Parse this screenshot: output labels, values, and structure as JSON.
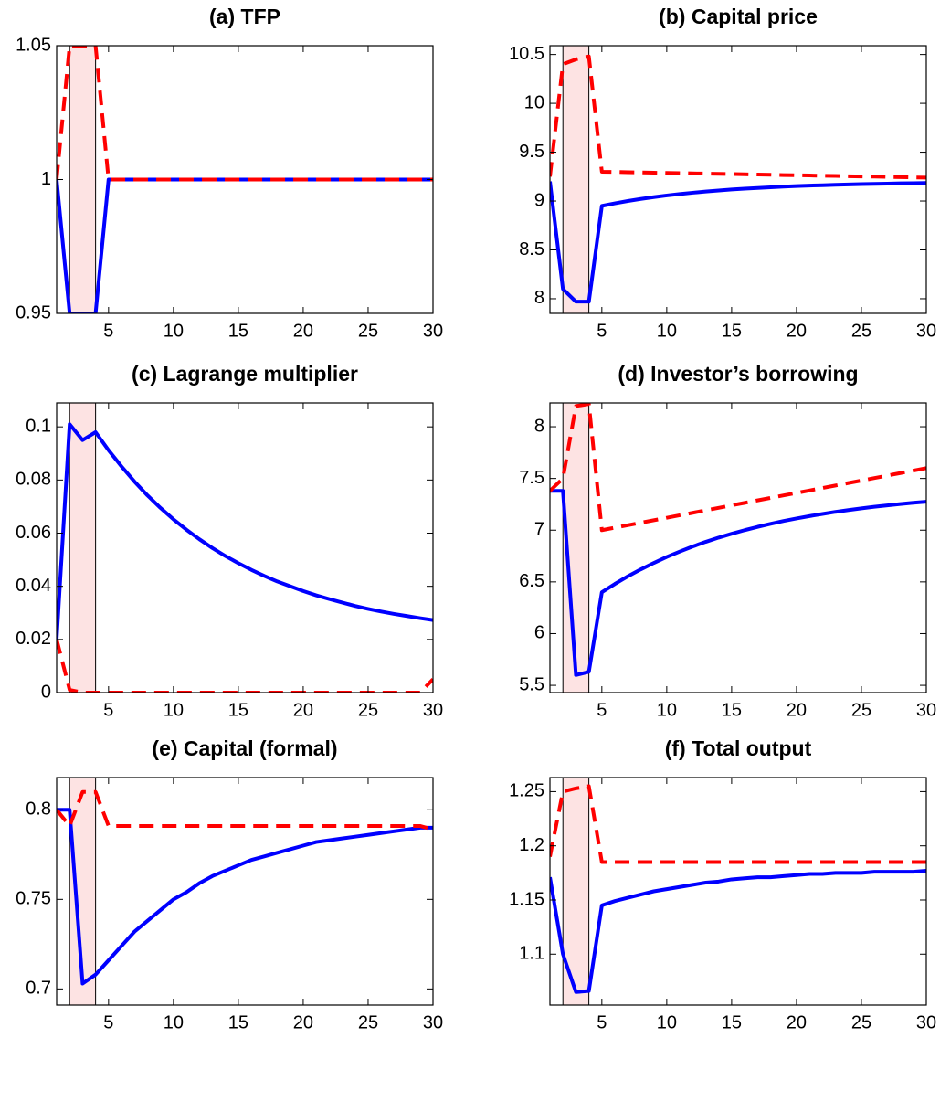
{
  "chart_data": [
    {
      "type": "line",
      "title": "(a) TFP",
      "x": [
        1,
        2,
        3,
        4,
        5,
        6,
        7,
        8,
        9,
        10,
        11,
        12,
        13,
        14,
        15,
        16,
        17,
        18,
        19,
        20,
        21,
        22,
        23,
        24,
        25,
        26,
        27,
        28,
        29,
        30
      ],
      "xlim": [
        1,
        30
      ],
      "xticks": [
        5,
        10,
        15,
        20,
        25,
        30
      ],
      "ylim": [
        0.95,
        1.05
      ],
      "yticks": [
        0.95,
        1,
        1.05
      ],
      "highlight_x": [
        2,
        4
      ],
      "series": [
        {
          "color": "#0000ff",
          "style": "solid",
          "values": [
            1,
            0.95,
            0.95,
            0.95,
            1,
            1,
            1,
            1,
            1,
            1,
            1,
            1,
            1,
            1,
            1,
            1,
            1,
            1,
            1,
            1,
            1,
            1,
            1,
            1,
            1,
            1,
            1,
            1,
            1,
            1
          ]
        },
        {
          "color": "#ff0000",
          "style": "dashed",
          "values": [
            1,
            1.05,
            1.05,
            1.05,
            1,
            1,
            1,
            1,
            1,
            1,
            1,
            1,
            1,
            1,
            1,
            1,
            1,
            1,
            1,
            1,
            1,
            1,
            1,
            1,
            1,
            1,
            1,
            1,
            1,
            1
          ]
        }
      ]
    },
    {
      "type": "line",
      "title": "(b) Capital price",
      "x": [
        1,
        2,
        3,
        4,
        5,
        6,
        7,
        8,
        9,
        10,
        11,
        12,
        13,
        14,
        15,
        16,
        17,
        18,
        19,
        20,
        21,
        22,
        23,
        24,
        25,
        26,
        27,
        28,
        29,
        30
      ],
      "xlim": [
        1,
        30
      ],
      "xticks": [
        5,
        10,
        15,
        20,
        25,
        30
      ],
      "ylim": [
        7.85,
        10.59
      ],
      "yticks": [
        8,
        8.5,
        9,
        9.5,
        10,
        10.5
      ],
      "highlight_x": [
        2,
        4
      ],
      "series": [
        {
          "color": "#0000ff",
          "style": "solid",
          "values": [
            9.2,
            8.1,
            7.97,
            7.97,
            8.95,
            8.976,
            9.0,
            9.021,
            9.04,
            9.057,
            9.072,
            9.085,
            9.097,
            9.108,
            9.118,
            9.126,
            9.134,
            9.141,
            9.147,
            9.153,
            9.158,
            9.162,
            9.166,
            9.17,
            9.173,
            9.176,
            9.178,
            9.181,
            9.183,
            9.185
          ]
        },
        {
          "color": "#ff0000",
          "style": "dashed",
          "values": [
            9.25,
            10.4,
            10.45,
            10.48,
            9.3,
            9.298,
            9.295,
            9.293,
            9.29,
            9.288,
            9.286,
            9.283,
            9.281,
            9.278,
            9.276,
            9.274,
            9.271,
            9.269,
            9.266,
            9.264,
            9.262,
            9.259,
            9.257,
            9.254,
            9.252,
            9.25,
            9.247,
            9.245,
            9.242,
            9.24
          ]
        }
      ]
    },
    {
      "type": "line",
      "title": "(c) Lagrange multiplier",
      "x": [
        1,
        2,
        3,
        4,
        5,
        6,
        7,
        8,
        9,
        10,
        11,
        12,
        13,
        14,
        15,
        16,
        17,
        18,
        19,
        20,
        21,
        22,
        23,
        24,
        25,
        26,
        27,
        28,
        29,
        30
      ],
      "xlim": [
        1,
        30
      ],
      "xticks": [
        5,
        10,
        15,
        20,
        25,
        30
      ],
      "ylim": [
        0,
        0.109
      ],
      "yticks": [
        0,
        0.02,
        0.04,
        0.06,
        0.08,
        0.1
      ],
      "highlight_x": [
        2,
        4
      ],
      "series": [
        {
          "color": "#0000ff",
          "style": "solid",
          "values": [
            0.02,
            0.101,
            0.095,
            0.098,
            0.0912,
            0.0851,
            0.0794,
            0.0742,
            0.0695,
            0.0652,
            0.0613,
            0.0577,
            0.0544,
            0.0514,
            0.0487,
            0.0462,
            0.0439,
            0.0418,
            0.04,
            0.0382,
            0.0366,
            0.0352,
            0.0339,
            0.0326,
            0.0315,
            0.0305,
            0.0296,
            0.0288,
            0.028,
            0.0273
          ]
        },
        {
          "color": "#ff0000",
          "style": "dashed",
          "values": [
            0.02,
            0.001,
            0,
            0,
            0,
            0,
            0,
            0,
            0,
            0,
            0,
            0,
            0,
            0,
            0,
            0,
            0,
            0,
            0,
            0,
            0,
            0,
            0,
            0,
            0,
            0,
            0,
            0,
            0,
            0.005
          ]
        }
      ]
    },
    {
      "type": "line",
      "title": "(d) Investor’s borrowing",
      "x": [
        1,
        2,
        3,
        4,
        5,
        6,
        7,
        8,
        9,
        10,
        11,
        12,
        13,
        14,
        15,
        16,
        17,
        18,
        19,
        20,
        21,
        22,
        23,
        24,
        25,
        26,
        27,
        28,
        29,
        30
      ],
      "xlim": [
        1,
        30
      ],
      "xticks": [
        5,
        10,
        15,
        20,
        25,
        30
      ],
      "ylim": [
        5.43,
        8.23
      ],
      "yticks": [
        5.5,
        6,
        6.5,
        7,
        7.5,
        8
      ],
      "highlight_x": [
        2,
        4
      ],
      "series": [
        {
          "color": "#0000ff",
          "style": "solid",
          "values": [
            7.38,
            7.38,
            5.6,
            5.63,
            6.4,
            6.48,
            6.554,
            6.621,
            6.683,
            6.741,
            6.793,
            6.842,
            6.887,
            6.928,
            6.965,
            7.0,
            7.032,
            7.061,
            7.089,
            7.113,
            7.136,
            7.157,
            7.177,
            7.194,
            7.211,
            7.226,
            7.24,
            7.253,
            7.265,
            7.275
          ]
        },
        {
          "color": "#ff0000",
          "style": "dashed",
          "values": [
            7.38,
            7.5,
            8.2,
            8.22,
            7.0,
            7.024,
            7.048,
            7.072,
            7.096,
            7.12,
            7.144,
            7.168,
            7.192,
            7.216,
            7.24,
            7.264,
            7.288,
            7.312,
            7.336,
            7.36,
            7.384,
            7.408,
            7.432,
            7.456,
            7.48,
            7.504,
            7.528,
            7.552,
            7.576,
            7.6
          ]
        }
      ]
    },
    {
      "type": "line",
      "title": "(e) Capital (formal)",
      "x": [
        1,
        2,
        3,
        4,
        5,
        6,
        7,
        8,
        9,
        10,
        11,
        12,
        13,
        14,
        15,
        16,
        17,
        18,
        19,
        20,
        21,
        22,
        23,
        24,
        25,
        26,
        27,
        28,
        29,
        30
      ],
      "xlim": [
        1,
        30
      ],
      "xticks": [
        5,
        10,
        15,
        20,
        25,
        30
      ],
      "ylim": [
        0.691,
        0.818
      ],
      "yticks": [
        0.7,
        0.75,
        0.8
      ],
      "highlight_x": [
        2,
        4
      ],
      "series": [
        {
          "color": "#0000ff",
          "style": "solid",
          "values": [
            0.8,
            0.8,
            0.703,
            0.708,
            0.716,
            0.724,
            0.732,
            0.738,
            0.744,
            0.75,
            0.754,
            0.759,
            0.763,
            0.766,
            0.769,
            0.772,
            0.774,
            0.776,
            0.778,
            0.78,
            0.782,
            0.783,
            0.784,
            0.785,
            0.786,
            0.787,
            0.788,
            0.789,
            0.79,
            0.79
          ]
        },
        {
          "color": "#ff0000",
          "style": "dashed",
          "values": [
            0.8,
            0.791,
            0.81,
            0.81,
            0.791,
            0.791,
            0.791,
            0.791,
            0.791,
            0.791,
            0.791,
            0.791,
            0.791,
            0.791,
            0.791,
            0.791,
            0.791,
            0.791,
            0.791,
            0.791,
            0.791,
            0.791,
            0.791,
            0.791,
            0.791,
            0.791,
            0.791,
            0.791,
            0.791,
            0.789
          ]
        }
      ]
    },
    {
      "type": "line",
      "title": "(f) Total output",
      "x": [
        1,
        2,
        3,
        4,
        5,
        6,
        7,
        8,
        9,
        10,
        11,
        12,
        13,
        14,
        15,
        16,
        17,
        18,
        19,
        20,
        21,
        22,
        23,
        24,
        25,
        26,
        27,
        28,
        29,
        30
      ],
      "xlim": [
        1,
        30
      ],
      "xticks": [
        5,
        10,
        15,
        20,
        25,
        30
      ],
      "ylim": [
        1.053,
        1.263
      ],
      "yticks": [
        1.1,
        1.15,
        1.2,
        1.25
      ],
      "highlight_x": [
        2,
        4
      ],
      "series": [
        {
          "color": "#0000ff",
          "style": "solid",
          "values": [
            1.171,
            1.1,
            1.065,
            1.066,
            1.145,
            1.149,
            1.152,
            1.155,
            1.158,
            1.16,
            1.162,
            1.164,
            1.166,
            1.167,
            1.169,
            1.17,
            1.171,
            1.171,
            1.172,
            1.173,
            1.174,
            1.174,
            1.175,
            1.175,
            1.175,
            1.176,
            1.176,
            1.176,
            1.176,
            1.177
          ]
        },
        {
          "color": "#ff0000",
          "style": "dashed",
          "values": [
            1.19,
            1.25,
            1.253,
            1.255,
            1.185,
            1.185,
            1.185,
            1.185,
            1.185,
            1.185,
            1.185,
            1.185,
            1.185,
            1.185,
            1.185,
            1.185,
            1.185,
            1.185,
            1.185,
            1.185,
            1.185,
            1.185,
            1.185,
            1.185,
            1.185,
            1.185,
            1.185,
            1.185,
            1.185,
            1.185
          ]
        }
      ]
    }
  ]
}
